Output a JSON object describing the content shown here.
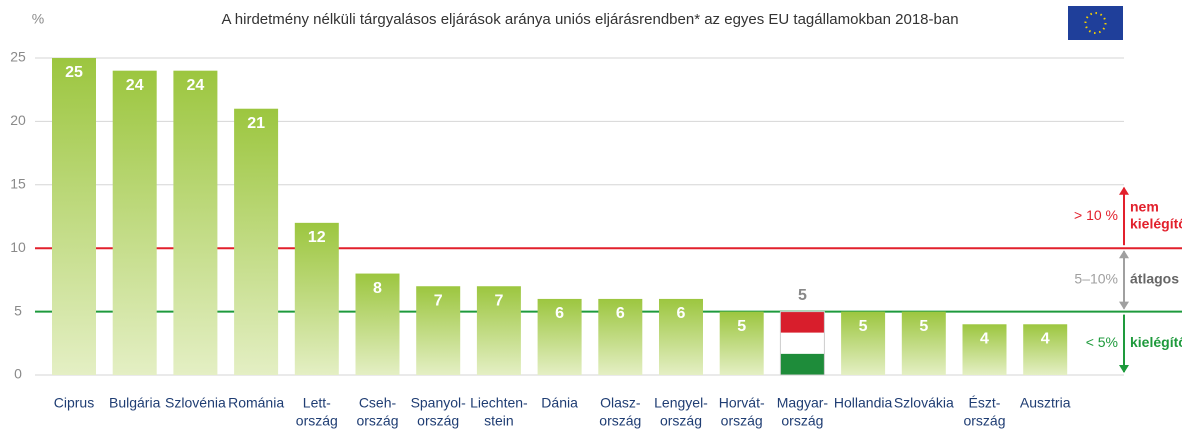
{
  "chart_data": {
    "type": "bar",
    "title": "A hirdetmény nélküli tárgyalásos eljárások aránya uniós eljárásrendben* az egyes EU tagállamokban 2018-ban",
    "y_label": "%",
    "categories": [
      [
        "Ciprus"
      ],
      [
        "Bulgária"
      ],
      [
        "Szlovénia"
      ],
      [
        "Románia"
      ],
      [
        "Lett-",
        "ország"
      ],
      [
        "Cseh-",
        "ország"
      ],
      [
        "Spanyol-",
        "ország"
      ],
      [
        "Liechten-",
        "stein"
      ],
      [
        "Dánia"
      ],
      [
        "Olasz-",
        "ország"
      ],
      [
        "Lengyel-",
        "ország"
      ],
      [
        "Horvát-",
        "ország"
      ],
      [
        "Magyar-",
        "ország"
      ],
      [
        "Hollandia"
      ],
      [
        "Szlovákia"
      ],
      [
        "Észt-",
        "ország"
      ],
      [
        "Ausztria"
      ]
    ],
    "values": [
      25,
      24,
      24,
      21,
      12,
      8,
      7,
      7,
      6,
      6,
      6,
      5,
      5,
      5,
      5,
      4,
      4
    ],
    "color": "#9cc63f",
    "flag_bar": 12,
    "ylim": [
      0,
      25
    ],
    "yticks": [
      0,
      5,
      10,
      15,
      20,
      25
    ],
    "grid": true,
    "reference_lines": [
      {
        "value": 10,
        "color": "#e2202c"
      },
      {
        "value": 5,
        "color": "#1e9a3c"
      }
    ],
    "bands": [
      {
        "from": 10,
        "to": 15,
        "arrow": "up",
        "color": "#e2202c",
        "label": "> 10 %",
        "note": [
          "nem",
          "kielégítő"
        ]
      },
      {
        "from": 5,
        "to": 10,
        "arrow": "both",
        "color": "#a0a0a0",
        "label": "5–10%",
        "note": [
          "átlagos"
        ]
      },
      {
        "from": 0,
        "to": 5,
        "arrow": "down",
        "color": "#1e9a3c",
        "label": "< 5%",
        "note": [
          "kielégítő"
        ]
      }
    ]
  }
}
